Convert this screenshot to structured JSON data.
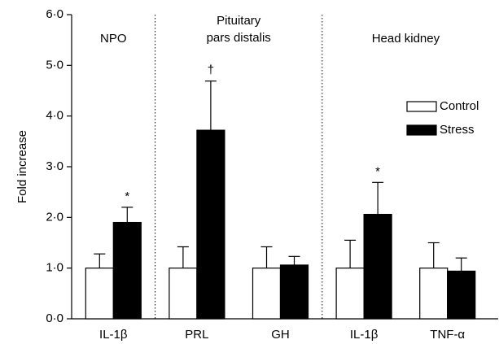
{
  "chart_data": {
    "type": "bar",
    "y_label": "Fold increase",
    "categories": [
      "IL-1β",
      "PRL",
      "GH",
      "IL-1β",
      "TNF-α"
    ],
    "sections": [
      {
        "lines": [
          "NPO"
        ]
      },
      {
        "lines": [
          "Pituitary",
          "pars distalis"
        ]
      },
      {
        "lines": [
          "Head kidney"
        ]
      }
    ],
    "series": [
      {
        "name": "Control",
        "color": "#ffffff",
        "values": [
          1.0,
          1.0,
          1.0,
          1.0,
          1.0
        ],
        "errors": [
          0.28,
          0.42,
          0.42,
          0.55,
          0.5
        ],
        "markers": [
          null,
          null,
          null,
          null,
          null
        ]
      },
      {
        "name": "Stress",
        "color": "#000000",
        "values": [
          1.9,
          3.72,
          1.06,
          2.06,
          0.94
        ],
        "errors": [
          0.3,
          0.97,
          0.17,
          0.63,
          0.26
        ],
        "markers": [
          "*",
          "†",
          null,
          "*",
          null
        ]
      }
    ],
    "ylim": [
      0,
      6
    ],
    "yticks": [
      {
        "value": 0,
        "label": "0·0"
      },
      {
        "value": 1,
        "label": "1·0"
      },
      {
        "value": 2,
        "label": "2·0"
      },
      {
        "value": 3,
        "label": "3·0"
      },
      {
        "value": 4,
        "label": "4·0"
      },
      {
        "value": 5,
        "label": "5·0"
      },
      {
        "value": 6,
        "label": "6·0"
      }
    ],
    "legend": "upper right",
    "grid": false
  }
}
